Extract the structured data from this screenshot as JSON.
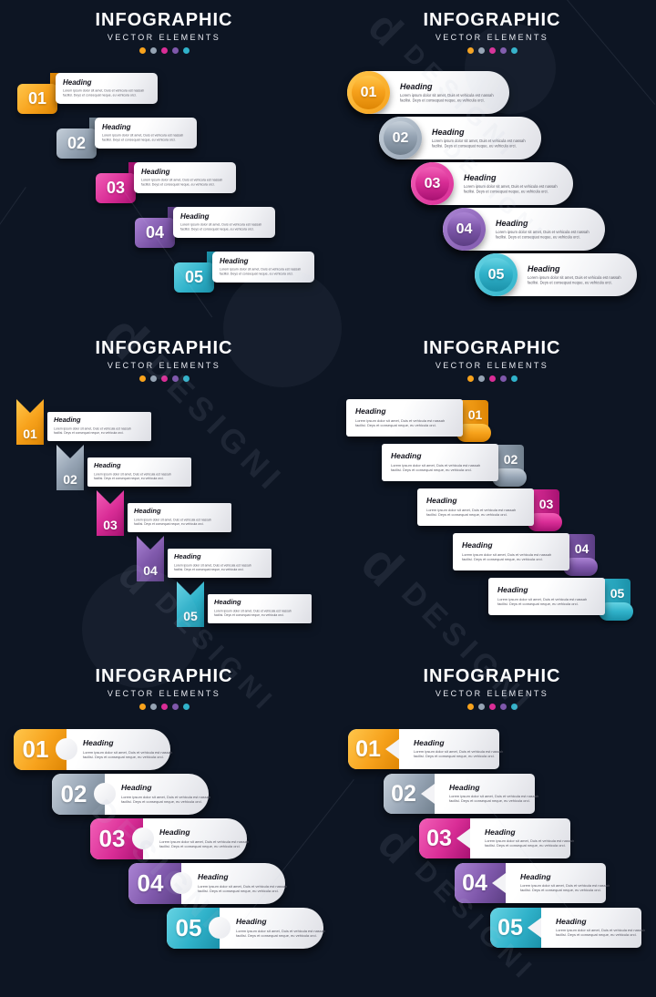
{
  "background_color": "#0d1523",
  "brand_watermark": {
    "text": "DESIGNI",
    "logo_letter": "d"
  },
  "step_colors": [
    {
      "name": "orange",
      "light": "#FFC64B",
      "main": "#F7A21C",
      "dark": "#DE8604"
    },
    {
      "name": "slate",
      "light": "#C6D0DA",
      "main": "#95A3B3",
      "dark": "#71808E"
    },
    {
      "name": "magenta",
      "light": "#F25FB7",
      "main": "#D92D96",
      "dark": "#A81272"
    },
    {
      "name": "purple",
      "light": "#AB84D4",
      "main": "#7F58AB",
      "dark": "#5C3E84"
    },
    {
      "name": "teal",
      "light": "#66D3E3",
      "main": "#30B2CA",
      "dark": "#1B91A9"
    }
  ],
  "panels": [
    {
      "style": "fold-tab",
      "title": "INFOGRAPHIC",
      "subtitle": "VECTOR ELEMENTS",
      "items": [
        {
          "number": "01",
          "heading": "Heading",
          "body1": "Lorem ipsum dolor sit amet, Duis et vehicula est nassah",
          "body2": "facilisi. Deys et consequat neque, eu vehicula orci."
        },
        {
          "number": "02",
          "heading": "Heading",
          "body1": "Lorem ipsum dolor sit amet, Duis et vehicula est nassah",
          "body2": "facilisi. Deys et consequat neque, eu vehicula orci."
        },
        {
          "number": "03",
          "heading": "Heading",
          "body1": "Lorem ipsum dolor sit amet, Duis et vehicula est nassah",
          "body2": "facilisi. Deys et consequat neque, eu vehicula orci."
        },
        {
          "number": "04",
          "heading": "Heading",
          "body1": "Lorem ipsum dolor sit amet, Duis et vehicula est nassah",
          "body2": "facilisi. Deys et consequat neque, eu vehicula orci."
        },
        {
          "number": "05",
          "heading": "Heading",
          "body1": "Lorem ipsum dolor sit amet, Duis et vehicula est nassah",
          "body2": "facilisi. Deys et consequat neque, eu vehicula orci."
        }
      ]
    },
    {
      "style": "circle-pill",
      "title": "INFOGRAPHIC",
      "subtitle": "VECTOR ELEMENTS",
      "items": [
        {
          "number": "01",
          "heading": "Heading",
          "body1": "Lorem ipsum dolor sit amet, Duis et vehicula est nassah",
          "body2": "facilisi. Deys et consequat neque, eu vehicula orci."
        },
        {
          "number": "02",
          "heading": "Heading",
          "body1": "Lorem ipsum dolor sit amet, Duis et vehicula est nassah",
          "body2": "facilisi. Deys et consequat neque, eu vehicula orci."
        },
        {
          "number": "03",
          "heading": "Heading",
          "body1": "Lorem ipsum dolor sit amet, Duis et vehicula est nassah",
          "body2": "facilisi. Deys et consequat neque, eu vehicula orci."
        },
        {
          "number": "04",
          "heading": "Heading",
          "body1": "Lorem ipsum dolor sit amet, Duis et vehicula est nassah",
          "body2": "facilisi. Deys et consequat neque, eu vehicula orci."
        },
        {
          "number": "05",
          "heading": "Heading",
          "body1": "Lorem ipsum dolor sit amet, Duis et vehicula est nassah",
          "body2": "facilisi. Deys et consequat neque, eu vehicula orci."
        }
      ]
    },
    {
      "style": "ribbon-flag",
      "title": "INFOGRAPHIC",
      "subtitle": "VECTOR ELEMENTS",
      "items": [
        {
          "number": "01",
          "heading": "Heading",
          "body1": "Lorem ipsum dolor sit amet, Duis et vehicula est nassah",
          "body2": "facilisi. Deys et consequat neque, eu vehicula orci."
        },
        {
          "number": "02",
          "heading": "Heading",
          "body1": "Lorem ipsum dolor sit amet, Duis et vehicula est nassah",
          "body2": "facilisi. Deys et consequat neque, eu vehicula orci."
        },
        {
          "number": "03",
          "heading": "Heading",
          "body1": "Lorem ipsum dolor sit amet, Duis et vehicula est nassah",
          "body2": "facilisi. Deys et consequat neque, eu vehicula orci."
        },
        {
          "number": "04",
          "heading": "Heading",
          "body1": "Lorem ipsum dolor sit amet, Duis et vehicula est nassah",
          "body2": "facilisi. Deys et consequat neque, eu vehicula orci."
        },
        {
          "number": "05",
          "heading": "Heading",
          "body1": "Lorem ipsum dolor sit amet, Duis et vehicula est nassah",
          "body2": "facilisi. Deys et consequat neque, eu vehicula orci."
        }
      ]
    },
    {
      "style": "curl-tab-right",
      "title": "INFOGRAPHIC",
      "subtitle": "VECTOR ELEMENTS",
      "items": [
        {
          "number": "01",
          "heading": "Heading",
          "body1": "Lorem ipsum dolor sit amet, Duis et vehicula est nassah",
          "body2": "facilisi. Deys et consequat neque, eu vehicula orci."
        },
        {
          "number": "02",
          "heading": "Heading",
          "body1": "Lorem ipsum dolor sit amet, Duis et vehicula est nassah",
          "body2": "facilisi. Deys et consequat neque, eu vehicula orci."
        },
        {
          "number": "03",
          "heading": "Heading",
          "body1": "Lorem ipsum dolor sit amet, Duis et vehicula est nassah",
          "body2": "facilisi. Deys et consequat neque, eu vehicula orci."
        },
        {
          "number": "04",
          "heading": "Heading",
          "body1": "Lorem ipsum dolor sit amet, Duis et vehicula est nassah",
          "body2": "facilisi. Deys et consequat neque, eu vehicula orci."
        },
        {
          "number": "05",
          "heading": "Heading",
          "body1": "Lorem ipsum dolor sit amet, Duis et vehicula est nassah",
          "body2": "facilisi. Deys et consequat neque, eu vehicula orci."
        }
      ]
    },
    {
      "style": "split-round",
      "title": "INFOGRAPHIC",
      "subtitle": "VECTOR ELEMENTS",
      "items": [
        {
          "number": "01",
          "heading": "Heading",
          "body1": "Lorem ipsum dolor sit amet, Duis et vehicula est nassah",
          "body2": "facilisi. Deys et consequat neque, eu vehicula orci."
        },
        {
          "number": "02",
          "heading": "Heading",
          "body1": "Lorem ipsum dolor sit amet, Duis et vehicula est nassah",
          "body2": "facilisi. Deys et consequat neque, eu vehicula orci."
        },
        {
          "number": "03",
          "heading": "Heading",
          "body1": "Lorem ipsum dolor sit amet, Duis et vehicula est nassah",
          "body2": "facilisi. Deys et consequat neque, eu vehicula orci."
        },
        {
          "number": "04",
          "heading": "Heading",
          "body1": "Lorem ipsum dolor sit amet, Duis et vehicula est nassah",
          "body2": "facilisi. Deys et consequat neque, eu vehicula orci."
        },
        {
          "number": "05",
          "heading": "Heading",
          "body1": "Lorem ipsum dolor sit amet, Duis et vehicula est nassah",
          "body2": "facilisi. Deys et consequat neque, eu vehicula orci."
        }
      ]
    },
    {
      "style": "split-arrow",
      "title": "INFOGRAPHIC",
      "subtitle": "VECTOR ELEMENTS",
      "items": [
        {
          "number": "01",
          "heading": "Heading",
          "body1": "Lorem ipsum dolor sit amet, Duis et vehicula est nassah",
          "body2": "facilisi. Deys et consequat neque, eu vehicula orci."
        },
        {
          "number": "02",
          "heading": "Heading",
          "body1": "Lorem ipsum dolor sit amet, Duis et vehicula est nassah",
          "body2": "facilisi. Deys et consequat neque, eu vehicula orci."
        },
        {
          "number": "03",
          "heading": "Heading",
          "body1": "Lorem ipsum dolor sit amet, Duis et vehicula est nassah",
          "body2": "facilisi. Deys et consequat neque, eu vehicula orci."
        },
        {
          "number": "04",
          "heading": "Heading",
          "body1": "Lorem ipsum dolor sit amet, Duis et vehicula est nassah",
          "body2": "facilisi. Deys et consequat neque, eu vehicula orci."
        },
        {
          "number": "05",
          "heading": "Heading",
          "body1": "Lorem ipsum dolor sit amet, Duis et vehicula est nassah",
          "body2": "facilisi. Deys et consequat neque, eu vehicula orci."
        }
      ]
    }
  ]
}
